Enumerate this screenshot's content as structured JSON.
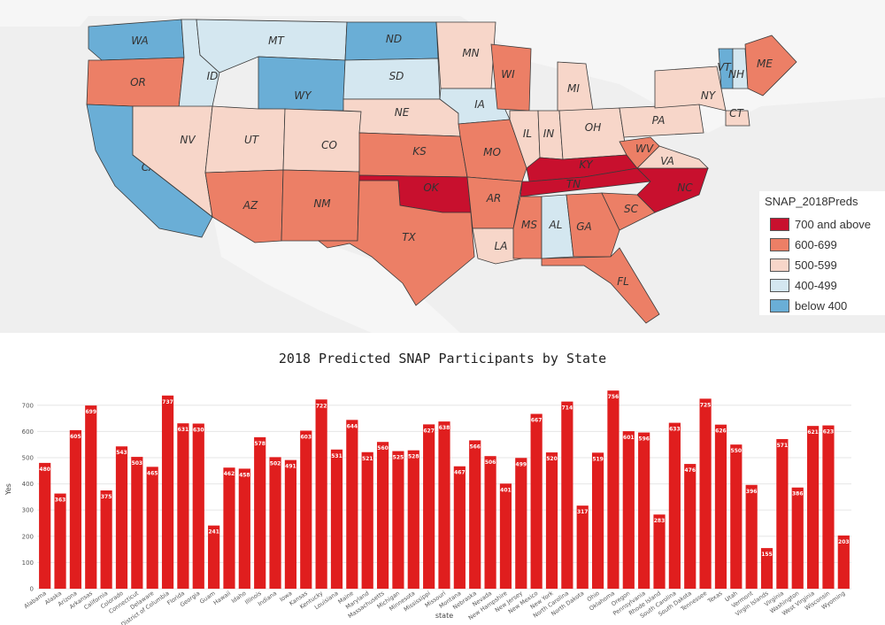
{
  "map": {
    "legend_title": "SNAP_2018Preds",
    "legend": [
      {
        "label": "700 and above",
        "color": "#c8102e"
      },
      {
        "label": "600-699",
        "color": "#ec7f66"
      },
      {
        "label": "500-599",
        "color": "#f7d6c9"
      },
      {
        "label": "400-499",
        "color": "#d4e7f0"
      },
      {
        "label": "below 400",
        "color": "#6aaed6"
      }
    ],
    "states": [
      {
        "abbr": "WA",
        "cls": 4
      },
      {
        "abbr": "OR",
        "cls": 1
      },
      {
        "abbr": "CA",
        "cls": 4
      },
      {
        "abbr": "ID",
        "cls": 3
      },
      {
        "abbr": "NV",
        "cls": 2
      },
      {
        "abbr": "MT",
        "cls": 3
      },
      {
        "abbr": "WY",
        "cls": 4
      },
      {
        "abbr": "UT",
        "cls": 2
      },
      {
        "abbr": "AZ",
        "cls": 1
      },
      {
        "abbr": "CO",
        "cls": 2
      },
      {
        "abbr": "NM",
        "cls": 1
      },
      {
        "abbr": "ND",
        "cls": 4
      },
      {
        "abbr": "SD",
        "cls": 3
      },
      {
        "abbr": "NE",
        "cls": 2
      },
      {
        "abbr": "KS",
        "cls": 1
      },
      {
        "abbr": "OK",
        "cls": 0
      },
      {
        "abbr": "TX",
        "cls": 1
      },
      {
        "abbr": "MN",
        "cls": 2
      },
      {
        "abbr": "IA",
        "cls": 3
      },
      {
        "abbr": "MO",
        "cls": 1
      },
      {
        "abbr": "AR",
        "cls": 1
      },
      {
        "abbr": "LA",
        "cls": 2
      },
      {
        "abbr": "WI",
        "cls": 1
      },
      {
        "abbr": "IL",
        "cls": 2
      },
      {
        "abbr": "MI",
        "cls": 2
      },
      {
        "abbr": "IN",
        "cls": 2
      },
      {
        "abbr": "OH",
        "cls": 2
      },
      {
        "abbr": "KY",
        "cls": 0
      },
      {
        "abbr": "TN",
        "cls": 0
      },
      {
        "abbr": "MS",
        "cls": 1
      },
      {
        "abbr": "AL",
        "cls": 3
      },
      {
        "abbr": "GA",
        "cls": 1
      },
      {
        "abbr": "FL",
        "cls": 1
      },
      {
        "abbr": "SC",
        "cls": 1
      },
      {
        "abbr": "NC",
        "cls": 0
      },
      {
        "abbr": "VA",
        "cls": 2
      },
      {
        "abbr": "WV",
        "cls": 1
      },
      {
        "abbr": "PA",
        "cls": 2
      },
      {
        "abbr": "NY",
        "cls": 2
      },
      {
        "abbr": "VT",
        "cls": 4
      },
      {
        "abbr": "NH",
        "cls": 3
      },
      {
        "abbr": "ME",
        "cls": 1
      },
      {
        "abbr": "CT",
        "cls": 2
      }
    ]
  },
  "chart_data": {
    "type": "bar",
    "title": "2018 Predicted SNAP Participants by State",
    "xlabel": "state",
    "ylabel": "Yes",
    "ylim": [
      0,
      760
    ],
    "yticks": [
      0,
      100,
      200,
      300,
      400,
      500,
      600,
      700
    ],
    "grid": true,
    "bar_color": "#e01e1e",
    "categories": [
      "Alabama",
      "Alaska",
      "Arizona",
      "Arkansas",
      "California",
      "Colorado",
      "Connecticut",
      "Delaware",
      "District of Columbia",
      "Florida",
      "Georgia",
      "Guam",
      "Hawaii",
      "Idaho",
      "Illinois",
      "Indiana",
      "Iowa",
      "Kansas",
      "Kentucky",
      "Louisiana",
      "Maine",
      "Maryland",
      "Massachusetts",
      "Michigan",
      "Minnesota",
      "Mississippi",
      "Missouri",
      "Montana",
      "Nebraska",
      "Nevada",
      "New Hampshire",
      "New Jersey",
      "New Mexico",
      "New York",
      "North Carolina",
      "North Dakota",
      "Ohio",
      "Oklahoma",
      "Oregon",
      "Pennsylvania",
      "Rhode Island",
      "South Carolina",
      "South Dakota",
      "Tennessee",
      "Texas",
      "Utah",
      "Vermont",
      "Virgin Islands",
      "Virginia",
      "Washington",
      "West Virginia",
      "Wisconsin",
      "Wyoming"
    ],
    "values": [
      480,
      363,
      605,
      699,
      375,
      543,
      503,
      465,
      737,
      631,
      630,
      241,
      462,
      458,
      578,
      502,
      491,
      603,
      722,
      531,
      644,
      521,
      560,
      525,
      528,
      627,
      638,
      467,
      566,
      506,
      401,
      499,
      667,
      520,
      714,
      317,
      519,
      756,
      601,
      596,
      283,
      633,
      476,
      725,
      626,
      550,
      396,
      155,
      571,
      386,
      621,
      623,
      203
    ]
  }
}
